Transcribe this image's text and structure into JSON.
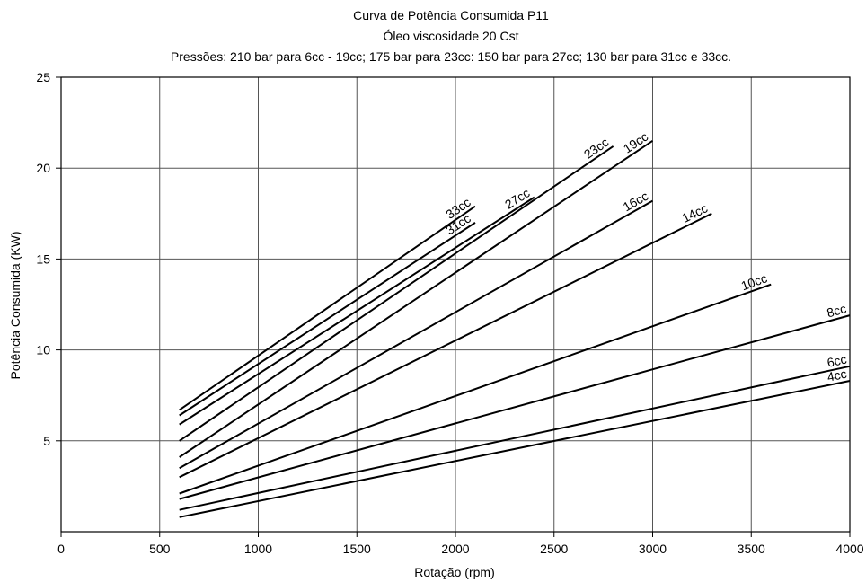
{
  "chart_data": {
    "type": "line",
    "title": "Curva de Potência Consumida P11",
    "subtitle": "Óleo viscosidade 20 Cst",
    "subtitle2": "Pressões: 210 bar para 6cc - 19cc; 175 bar para 23cc: 150 bar para 27cc; 130 bar para 31cc e 33cc.",
    "xlabel": "Rotação (rpm)",
    "ylabel": "Potência Consumida (KW)",
    "xlim": [
      0,
      4000
    ],
    "ylim": [
      0,
      25
    ],
    "x_ticks": [
      0,
      500,
      1000,
      1500,
      2000,
      2500,
      3000,
      3500,
      4000
    ],
    "y_ticks": [
      5,
      10,
      15,
      20,
      25
    ],
    "grid": true,
    "legend": "none (labels at line ends)",
    "series": [
      {
        "name": "33cc",
        "x": [
          600,
          2100
        ],
        "y": [
          6.7,
          17.9
        ]
      },
      {
        "name": "31cc",
        "x": [
          600,
          2100
        ],
        "y": [
          6.4,
          17.0
        ]
      },
      {
        "name": "27cc",
        "x": [
          600,
          2400
        ],
        "y": [
          5.9,
          18.4
        ]
      },
      {
        "name": "23cc",
        "x": [
          600,
          2800
        ],
        "y": [
          5.0,
          21.2
        ]
      },
      {
        "name": "19cc",
        "x": [
          600,
          3000
        ],
        "y": [
          4.1,
          21.5
        ]
      },
      {
        "name": "16cc",
        "x": [
          600,
          3000
        ],
        "y": [
          3.5,
          18.2
        ]
      },
      {
        "name": "14cc",
        "x": [
          600,
          3300
        ],
        "y": [
          3.0,
          17.5
        ]
      },
      {
        "name": "10cc",
        "x": [
          600,
          3600
        ],
        "y": [
          2.1,
          13.6
        ]
      },
      {
        "name": "8cc",
        "x": [
          600,
          4000
        ],
        "y": [
          1.8,
          11.9
        ]
      },
      {
        "name": "6cc",
        "x": [
          600,
          4000
        ],
        "y": [
          1.2,
          9.1
        ]
      },
      {
        "name": "4cc",
        "x": [
          600,
          4000
        ],
        "y": [
          0.8,
          8.3
        ]
      }
    ]
  }
}
